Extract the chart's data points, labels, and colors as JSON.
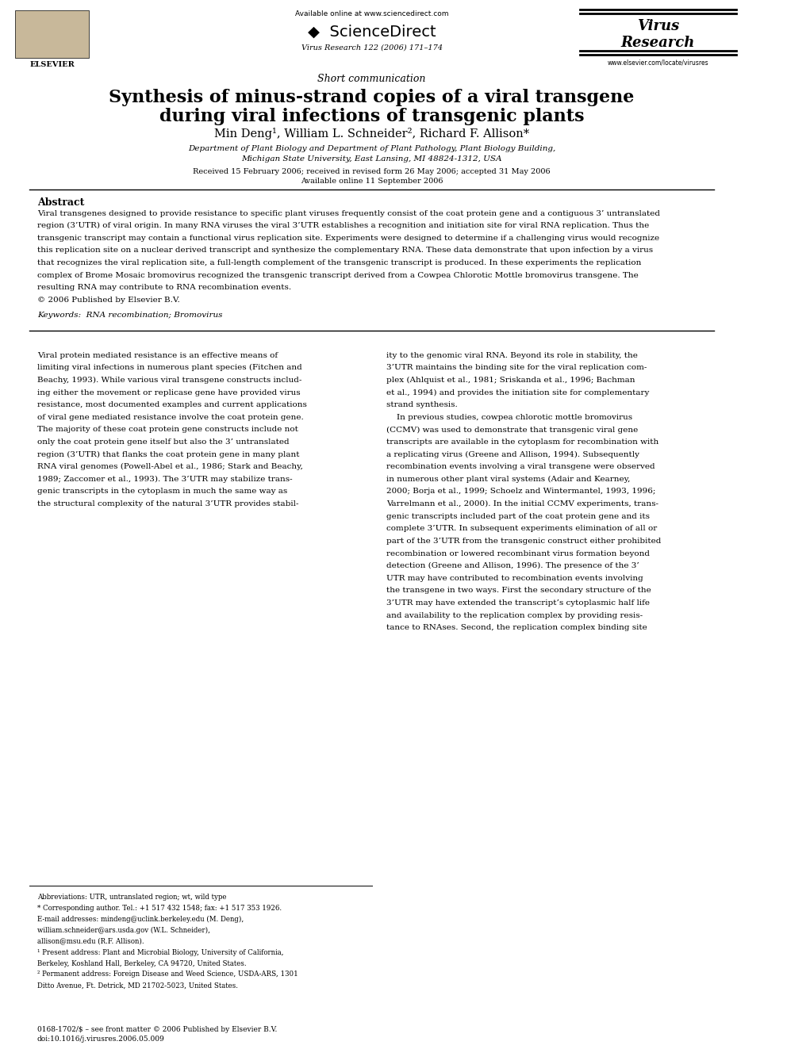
{
  "bg_color": "#ffffff",
  "page_width": 9.92,
  "page_height": 13.23,
  "dpi": 100,
  "header": {
    "available_online": "Available online at www.sciencedirect.com",
    "sciencedirect": "ScienceDirect",
    "journal_line": "Virus Research 122 (2006) 171–174",
    "virus_research_line1": "Virus",
    "virus_research_line2": "Research",
    "elsevier_text": "ELSEVIER",
    "website": "www.elsevier.com/locate/virusres"
  },
  "article_type": "Short communication",
  "title_line1": "Synthesis of minus-strand copies of a viral transgene",
  "title_line2": "during viral infections of transgenic plants",
  "authors": "Min Deng¹, William L. Schneider², Richard F. Allison*",
  "affiliation1": "Department of Plant Biology and Department of Plant Pathology, Plant Biology Building,",
  "affiliation2": "Michigan State University, East Lansing, MI 48824-1312, USA",
  "received": "Received 15 February 2006; received in revised form 26 May 2006; accepted 31 May 2006",
  "available": "Available online 11 September 2006",
  "abstract_title": "Abstract",
  "abstract_body": "Viral transgenes designed to provide resistance to specific plant viruses frequently consist of the coat protein gene and a contiguous 3’ untranslated\nregion (3’UTR) of viral origin. In many RNA viruses the viral 3’UTR establishes a recognition and initiation site for viral RNA replication. Thus the\ntransgenic transcript may contain a functional virus replication site. Experiments were designed to determine if a challenging virus would recognize\nthis replication site on a nuclear derived transcript and synthesize the complementary RNA. These data demonstrate that upon infection by a virus\nthat recognizes the viral replication site, a full-length complement of the transgenic transcript is produced. In these experiments the replication\ncomplex of Brome Mosaic bromovirus recognized the transgenic transcript derived from a Cowpea Chlorotic Mottle bromovirus transgene. The\nresulting RNA may contribute to RNA recombination events.\n© 2006 Published by Elsevier B.V.",
  "keywords": "Keywords:  RNA recombination; Bromovirus",
  "body_col1_para1": "Viral protein mediated resistance is an effective means of\nlimiting viral infections in numerous plant species (Fitchen and\nBeachy, 1993). While various viral transgene constructs includ-\ning either the movement or replicase gene have provided virus\nresistance, most documented examples and current applications\nof viral gene mediated resistance involve the coat protein gene.\nThe majority of these coat protein gene constructs include not\nonly the coat protein gene itself but also the 3’ untranslated\nregion (3’UTR) that flanks the coat protein gene in many plant\nRNA viral genomes (Powell-Abel et al., 1986; Stark and Beachy,\n1989; Zaccomer et al., 1993). The 3’UTR may stabilize trans-\ngenic transcripts in the cytoplasm in much the same way as\nthe structural complexity of the natural 3’UTR provides stabil-",
  "body_col2_para1": "ity to the genomic viral RNA. Beyond its role in stability, the\n3’UTR maintains the binding site for the viral replication com-\nplex (Ahlquist et al., 1981; Sriskanda et al., 1996; Bachman\net al., 1994) and provides the initiation site for complementary\nstrand synthesis.\n    In previous studies, cowpea chlorotic mottle bromovirus\n(CCMV) was used to demonstrate that transgenic viral gene\ntranscripts are available in the cytoplasm for recombination with\na replicating virus (Greene and Allison, 1994). Subsequently\nrecombination events involving a viral transgene were observed\nin numerous other plant viral systems (Adair and Kearney,\n2000; Borja et al., 1999; Schoelz and Wintermantel, 1993, 1996;\nVarrelmann et al., 2000). In the initial CCMV experiments, trans-\ngenic transcripts included part of the coat protein gene and its\ncomplete 3’UTR. In subsequent experiments elimination of all or\npart of the 3’UTR from the transgenic construct either prohibited\nrecombination or lowered recombinant virus formation beyond\ndetection (Greene and Allison, 1996). The presence of the 3’\nUTR may have contributed to recombination events involving\nthe transgene in two ways. First the secondary structure of the\n3’UTR may have extended the transcript’s cytoplasmic half life\nand availability to the replication complex by providing resis-\ntance to RNAses. Second, the replication complex binding site",
  "footnote_abbrev": "Abbreviations: UTR, untranslated region; wt, wild type",
  "footnote_corr": "* Corresponding author. Tel.: +1 517 432 1548; fax: +1 517 353 1926.",
  "footnote_email1": "E-mail addresses: mindeng@uclink.berkeley.edu (M. Deng),",
  "footnote_email2": "william.schneider@ars.usda.gov (W.L. Schneider),",
  "footnote_email3": "allison@msu.edu (R.F. Allison).",
  "footnote_1": "¹ Present address: Plant and Microbial Biology, University of California,",
  "footnote_1b": "Berkeley, Koshland Hall, Berkeley, CA 94720, United States.",
  "footnote_2": "² Permanent address: Foreign Disease and Weed Science, USDA-ARS, 1301",
  "footnote_2b": "Ditto Avenue, Ft. Detrick, MD 21702-5023, United States.",
  "bottom_line1": "0168-1702/$ – see front matter © 2006 Published by Elsevier B.V.",
  "bottom_line2": "doi:10.1016/j.virusres.2006.05.009"
}
